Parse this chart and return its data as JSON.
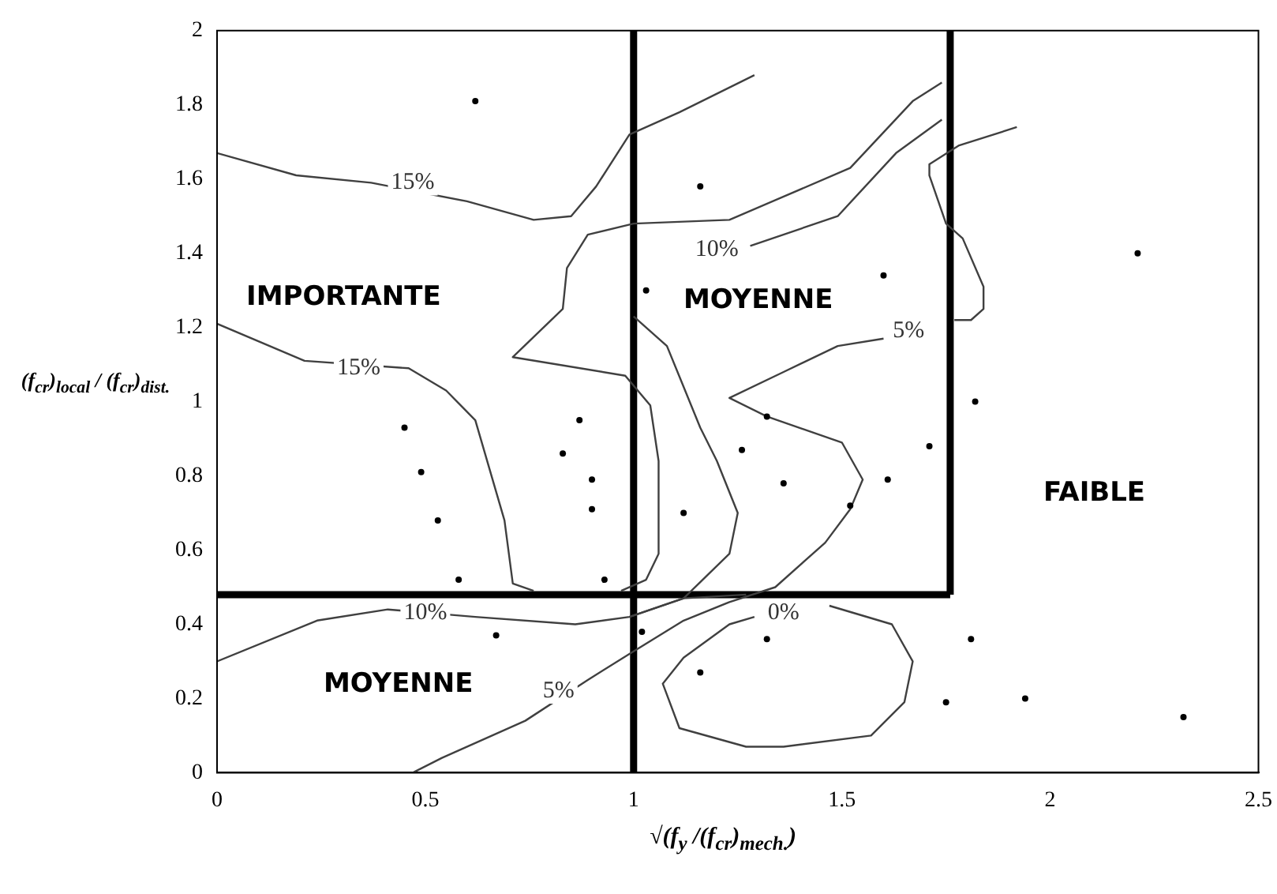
{
  "chart_data": {
    "type": "scatter",
    "xlabel": "√(f$_{y}$ /(f$_{cr}$)$_{mech.}$)",
    "ylabel": "(f$_{cr}$)$_{local}$ / (f$_{cr}$)$_{dist.}$",
    "xlim": [
      0,
      2.5
    ],
    "ylim": [
      0,
      2
    ],
    "xticks": [
      0,
      0.5,
      1,
      1.5,
      2,
      2.5
    ],
    "yticks": [
      0,
      0.2,
      0.4,
      0.6,
      0.8,
      1,
      1.2,
      1.4,
      1.6,
      1.8,
      2
    ],
    "grid": false,
    "legend": false,
    "series": [
      {
        "marker": "circle",
        "color": "#000000",
        "x": [
          0.62,
          1.16,
          1.03,
          1.6,
          2.21,
          1.82,
          0.45,
          0.87,
          0.83,
          0.49,
          0.9,
          1.26,
          1.32,
          1.36,
          1.71,
          1.61,
          0.9,
          0.53,
          1.12,
          1.52,
          0.58,
          0.93,
          0.67,
          1.02,
          1.16,
          1.32,
          1.81,
          1.75,
          1.94,
          2.32
        ],
        "values": [
          1.81,
          1.58,
          1.3,
          1.34,
          1.4,
          1,
          0.93,
          0.95,
          0.86,
          0.81,
          0.79,
          0.87,
          0.96,
          0.78,
          0.88,
          0.79,
          0.71,
          0.68,
          0.7,
          0.72,
          0.52,
          0.52,
          0.37,
          0.38,
          0.27,
          0.36,
          0.36,
          0.19,
          0.2,
          0.15
        ]
      },
      {
        "type": "line",
        "color": "#404040",
        "x": [
          0,
          0.19,
          0.37,
          0.6,
          0.76,
          0.85,
          0.91,
          0.99,
          1.11,
          1.29
        ],
        "values": [
          1.67,
          1.61,
          1.59,
          1.54,
          1.49,
          1.5,
          1.58,
          1.72,
          1.78,
          1.88
        ]
      },
      {
        "type": "line",
        "color": "#404040",
        "x": [
          1.74,
          1.67,
          1.52,
          1.23,
          1,
          0.89,
          0.84,
          0.83,
          0.71,
          0.98,
          1.04,
          1.06,
          1.06,
          1.03,
          0.97
        ],
        "values": [
          1.86,
          1.81,
          1.63,
          1.49,
          1.48,
          1.45,
          1.36,
          1.25,
          1.12,
          1.07,
          0.99,
          0.84,
          0.59,
          0.52,
          0.49
        ]
      },
      {
        "type": "line",
        "color": "#404040",
        "x": [
          0,
          0.21,
          0.46,
          0.55,
          0.62,
          0.69,
          0.71,
          0.76
        ],
        "values": [
          1.21,
          1.11,
          1.09,
          1.03,
          0.95,
          0.68,
          0.51,
          0.49
        ]
      },
      {
        "type": "line",
        "color": "#404040",
        "x": [
          0,
          0.24,
          0.41,
          0.62,
          0.86,
          0.99,
          1.12,
          1.27
        ],
        "values": [
          0.3,
          0.41,
          0.44,
          0.42,
          0.4,
          0.42,
          0.47,
          0.48
        ]
      },
      {
        "type": "line",
        "color": "#404040",
        "x": [
          1.6,
          1.49,
          1.36,
          1.23,
          1.32,
          1.5,
          1.55,
          1.52,
          1.46,
          1.34,
          1.23,
          1.12,
          0.99,
          0.89,
          0.74,
          0.54,
          0.47
        ],
        "values": [
          1.17,
          1.15,
          1.08,
          1.01,
          0.96,
          0.89,
          0.79,
          0.71,
          0.62,
          0.5,
          0.46,
          0.41,
          0.32,
          0.25,
          0.14,
          0.04,
          0
        ]
      },
      {
        "type": "line",
        "color": "#404040",
        "x": [
          1.29,
          1.23,
          1.12,
          1.07,
          1.11,
          1.27,
          1.36,
          1.57,
          1.65,
          1.67,
          1.62,
          1.47
        ],
        "values": [
          0.42,
          0.4,
          0.31,
          0.24,
          0.12,
          0.07,
          0.07,
          0.1,
          0.19,
          0.3,
          0.4,
          0.45
        ]
      },
      {
        "type": "line",
        "color": "#404040",
        "x": [
          1,
          1.08,
          1.12,
          1.16,
          1.2,
          1.25,
          1.23,
          1.12,
          0.99
        ],
        "values": [
          1.23,
          1.15,
          1.04,
          0.93,
          0.84,
          0.7,
          0.59,
          0.47,
          0.42
        ]
      },
      {
        "type": "line",
        "color": "#404040",
        "x": [
          1.74,
          1.63,
          1.49,
          1.28
        ],
        "values": [
          1.76,
          1.67,
          1.5,
          1.42
        ]
      },
      {
        "type": "line",
        "color": "#404040",
        "x": [
          1.92,
          1.78,
          1.71,
          1.71,
          1.75,
          1.79,
          1.84,
          1.84,
          1.81,
          1.77
        ],
        "values": [
          1.74,
          1.69,
          1.64,
          1.61,
          1.48,
          1.44,
          1.31,
          1.25,
          1.22,
          1.22
        ]
      },
      {
        "type": "line",
        "color": "#000000",
        "x": [
          1,
          1
        ],
        "values": [
          0,
          2
        ]
      },
      {
        "type": "line",
        "color": "#000000",
        "x": [
          1.76,
          1.76
        ],
        "values": [
          0.48,
          2
        ]
      },
      {
        "type": "line",
        "color": "#000000",
        "x": [
          0,
          1.76
        ],
        "values": [
          0.48,
          0.48
        ]
      }
    ],
    "annotations": [
      {
        "text": "15%",
        "x": 0.47,
        "y": 1.59
      },
      {
        "text": "15%",
        "x": 0.34,
        "y": 1.09
      },
      {
        "text": "10%",
        "x": 1.2,
        "y": 1.41
      },
      {
        "text": "5%",
        "x": 1.66,
        "y": 1.19
      },
      {
        "text": "10%",
        "x": 0.5,
        "y": 0.43
      },
      {
        "text": "5%",
        "x": 0.82,
        "y": 0.22
      },
      {
        "text": "0%",
        "x": 1.36,
        "y": 0.43
      },
      "IMPORTANTE",
      "MOYENNE",
      "FAIBLE",
      "MOYENNE"
    ]
  }
}
